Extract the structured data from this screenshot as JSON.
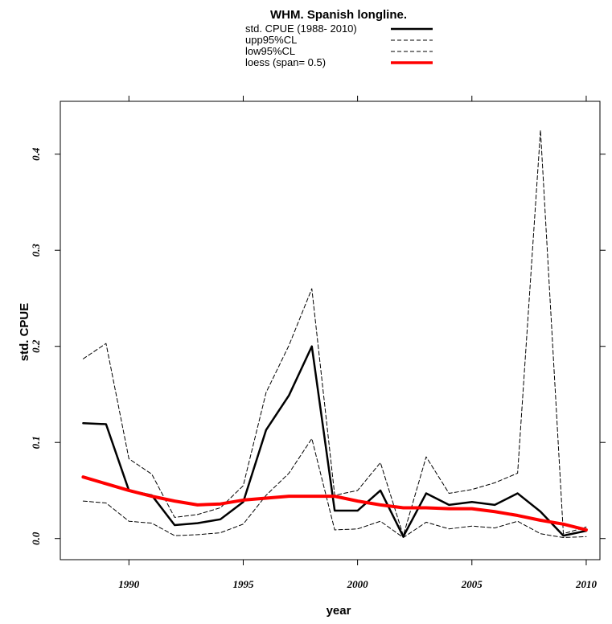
{
  "chart_data": {
    "type": "line",
    "title": "WHM. Spanish longline.",
    "xlabel": "year",
    "ylabel": "std. CPUE",
    "xlim": [
      1987.0,
      2010.6
    ],
    "ylim": [
      -0.022,
      0.455
    ],
    "x_ticks": [
      1990,
      1995,
      2000,
      2005,
      2010
    ],
    "y_ticks": [
      0.0,
      0.1,
      0.2,
      0.3,
      0.4
    ],
    "x_tick_labels": [
      "1990",
      "1995",
      "2000",
      "2005",
      "2010"
    ],
    "y_tick_labels": [
      "0.0",
      "0.1",
      "0.2",
      "0.3",
      "0.4"
    ],
    "grid": false,
    "legend_position": "top",
    "x": [
      1988,
      1989,
      1990,
      1991,
      1992,
      1993,
      1994,
      1995,
      1996,
      1997,
      1998,
      1999,
      2000,
      2001,
      2002,
      2003,
      2004,
      2005,
      2006,
      2007,
      2008,
      2009,
      2010
    ],
    "series": [
      {
        "name": "std. CPUE (1988- 2010)",
        "color": "#000000",
        "style": "solid",
        "width": 2.5,
        "values": [
          0.12,
          0.119,
          0.05,
          0.045,
          0.014,
          0.016,
          0.02,
          0.038,
          0.113,
          0.149,
          0.2,
          0.029,
          0.029,
          0.05,
          0.002,
          0.047,
          0.035,
          0.038,
          0.035,
          0.047,
          0.028,
          0.003,
          0.008
        ]
      },
      {
        "name": "upp95%CL",
        "color": "#000000",
        "style": "dashed",
        "width": 1,
        "values": [
          0.187,
          0.203,
          0.083,
          0.067,
          0.022,
          0.025,
          0.032,
          0.055,
          0.152,
          0.201,
          0.26,
          0.045,
          0.05,
          0.079,
          0.003,
          0.085,
          0.047,
          0.051,
          0.058,
          0.068,
          0.425,
          0.005,
          0.012
        ]
      },
      {
        "name": "low95%CL",
        "color": "#000000",
        "style": "dashed",
        "width": 1,
        "values": [
          0.039,
          0.037,
          0.018,
          0.016,
          0.003,
          0.004,
          0.006,
          0.015,
          0.045,
          0.068,
          0.104,
          0.009,
          0.01,
          0.018,
          0.001,
          0.017,
          0.01,
          0.013,
          0.011,
          0.018,
          0.005,
          0.001,
          0.002
        ]
      },
      {
        "name": "loess (span= 0.5)",
        "color": "#ff0000",
        "style": "solid",
        "width": 4,
        "values": [
          0.064,
          0.057,
          0.05,
          0.044,
          0.039,
          0.035,
          0.036,
          0.04,
          0.042,
          0.044,
          0.044,
          0.044,
          0.039,
          0.035,
          0.032,
          0.032,
          0.031,
          0.031,
          0.028,
          0.024,
          0.019,
          0.015,
          0.009
        ]
      }
    ]
  }
}
